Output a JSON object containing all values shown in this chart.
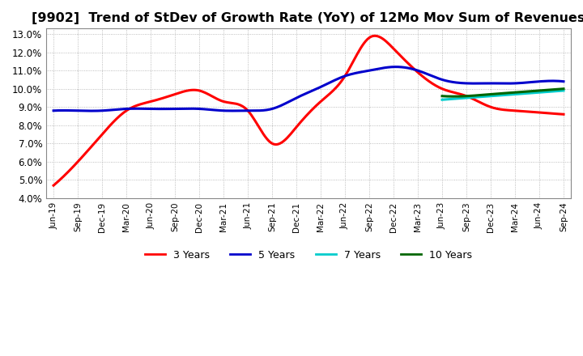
{
  "title": "[9902]  Trend of StDev of Growth Rate (YoY) of 12Mo Mov Sum of Revenues",
  "title_fontsize": 11.5,
  "ylim": [
    0.04,
    0.133
  ],
  "yticks": [
    0.04,
    0.05,
    0.06,
    0.07,
    0.08,
    0.09,
    0.1,
    0.11,
    0.12,
    0.13
  ],
  "background_color": "#ffffff",
  "plot_bg_color": "#ffffff",
  "grid_color": "#aaaaaa",
  "series": {
    "3 Years": {
      "color": "#ff0000",
      "points": [
        [
          "Jun-19",
          0.047
        ],
        [
          "Sep-19",
          0.06
        ],
        [
          "Dec-19",
          0.075
        ],
        [
          "Mar-20",
          0.088
        ],
        [
          "Jun-20",
          0.093
        ],
        [
          "Sep-20",
          0.097
        ],
        [
          "Dec-20",
          0.099
        ],
        [
          "Mar-21",
          0.093
        ],
        [
          "Jun-21",
          0.088
        ],
        [
          "Sep-21",
          0.07
        ],
        [
          "Dec-21",
          0.079
        ],
        [
          "Mar-22",
          0.093
        ],
        [
          "Jun-22",
          0.107
        ],
        [
          "Sep-22",
          0.128
        ],
        [
          "Dec-22",
          0.122
        ],
        [
          "Mar-23",
          0.109
        ],
        [
          "Jun-23",
          0.1
        ],
        [
          "Sep-23",
          0.096
        ],
        [
          "Dec-23",
          0.09
        ],
        [
          "Mar-24",
          0.088
        ],
        [
          "Jun-24",
          0.087
        ],
        [
          "Sep-24",
          0.086
        ]
      ]
    },
    "5 Years": {
      "color": "#0000cc",
      "points": [
        [
          "Jun-19",
          0.088
        ],
        [
          "Sep-19",
          0.088
        ],
        [
          "Dec-19",
          0.088
        ],
        [
          "Mar-20",
          0.089
        ],
        [
          "Jun-20",
          0.089
        ],
        [
          "Sep-20",
          0.089
        ],
        [
          "Dec-20",
          0.089
        ],
        [
          "Mar-21",
          0.088
        ],
        [
          "Jun-21",
          0.088
        ],
        [
          "Sep-21",
          0.089
        ],
        [
          "Dec-21",
          0.095
        ],
        [
          "Mar-22",
          0.101
        ],
        [
          "Jun-22",
          0.107
        ],
        [
          "Sep-22",
          0.11
        ],
        [
          "Dec-22",
          0.112
        ],
        [
          "Mar-23",
          0.11
        ],
        [
          "Jun-23",
          0.105
        ],
        [
          "Sep-23",
          0.103
        ],
        [
          "Dec-23",
          0.103
        ],
        [
          "Mar-24",
          0.103
        ],
        [
          "Jun-24",
          0.104
        ],
        [
          "Sep-24",
          0.104
        ]
      ]
    },
    "7 Years": {
      "color": "#00cccc",
      "points": [
        [
          "Jun-23",
          0.094
        ],
        [
          "Sep-23",
          0.095
        ],
        [
          "Dec-23",
          0.096
        ],
        [
          "Mar-24",
          0.097
        ],
        [
          "Jun-24",
          0.098
        ],
        [
          "Sep-24",
          0.099
        ]
      ]
    },
    "10 Years": {
      "color": "#006600",
      "points": [
        [
          "Jun-23",
          0.096
        ],
        [
          "Sep-23",
          0.096
        ],
        [
          "Dec-23",
          0.097
        ],
        [
          "Mar-24",
          0.098
        ],
        [
          "Jun-24",
          0.099
        ],
        [
          "Sep-24",
          0.1
        ]
      ]
    }
  },
  "xtick_labels": [
    "Jun-19",
    "Sep-19",
    "Dec-19",
    "Mar-20",
    "Jun-20",
    "Sep-20",
    "Dec-20",
    "Mar-21",
    "Jun-21",
    "Sep-21",
    "Dec-21",
    "Mar-22",
    "Jun-22",
    "Sep-22",
    "Dec-22",
    "Mar-23",
    "Jun-23",
    "Sep-23",
    "Dec-23",
    "Mar-24",
    "Jun-24",
    "Sep-24"
  ],
  "legend_entries": [
    "3 Years",
    "5 Years",
    "7 Years",
    "10 Years"
  ],
  "legend_colors": [
    "#ff0000",
    "#0000cc",
    "#00cccc",
    "#006600"
  ]
}
